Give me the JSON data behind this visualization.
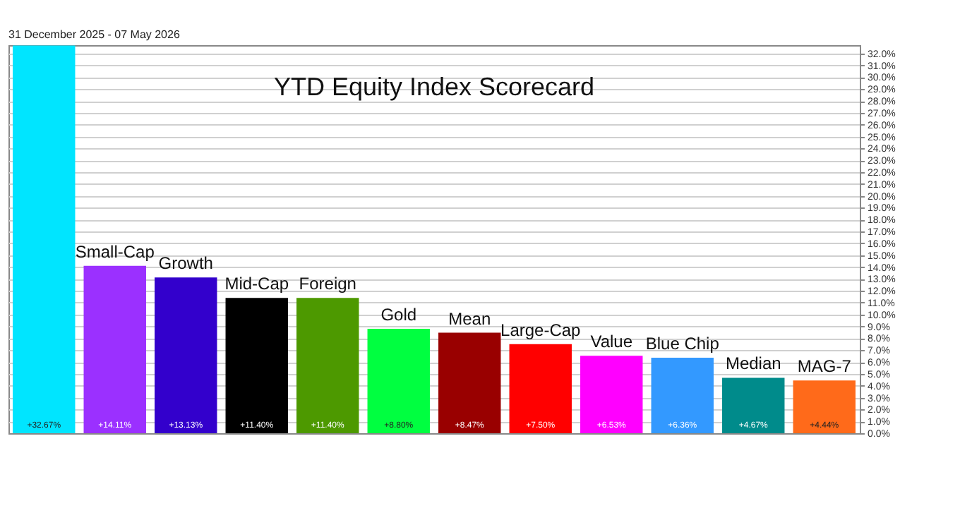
{
  "chart_data": {
    "type": "bar",
    "title": "YTD Equity Index Scorecard",
    "subtitle": "31 December 2025 - 07 May 2026",
    "categories": [
      null,
      "Small-Cap",
      "Growth",
      "Mid-Cap",
      "Foreign",
      "Gold",
      "Mean",
      "Large-Cap",
      "Value",
      "Blue Chip",
      "Median",
      "MAG-7"
    ],
    "values": [
      32.67,
      14.11,
      13.13,
      11.4,
      11.4,
      8.8,
      8.47,
      7.5,
      6.53,
      6.36,
      4.67,
      4.44
    ],
    "colors": [
      "#00e5ff",
      "#9b30ff",
      "#3300cc",
      "#000000",
      "#4d9900",
      "#00ff40",
      "#990000",
      "#ff0000",
      "#ff00ff",
      "#3399ff",
      "#008b8b",
      "#ff6a1a"
    ],
    "value_labels": [
      "+32.67%",
      "+14.11%",
      "+13.13%",
      "+11.40%",
      "+11.40%",
      "+8.80%",
      "+8.47%",
      "+7.50%",
      "+6.53%",
      "+6.36%",
      "+4.67%",
      "+4.44%"
    ],
    "ylim": [
      0,
      32.7
    ],
    "yticks": [
      {
        "value": 0,
        "label": "0.0%"
      },
      {
        "value": 1,
        "label": "1.0%"
      },
      {
        "value": 2,
        "label": "2.0%"
      },
      {
        "value": 3,
        "label": "3.0%"
      },
      {
        "value": 4,
        "label": "4.0%"
      },
      {
        "value": 5,
        "label": "5.0%"
      },
      {
        "value": 6,
        "label": "6.0%"
      },
      {
        "value": 7,
        "label": "7.0%"
      },
      {
        "value": 8,
        "label": "8.0%"
      },
      {
        "value": 9,
        "label": "9.0%"
      },
      {
        "value": 10,
        "label": "10.0%"
      },
      {
        "value": 11,
        "label": "11.0%"
      },
      {
        "value": 12,
        "label": "12.0%"
      },
      {
        "value": 13,
        "label": "13.0%"
      },
      {
        "value": 14,
        "label": "14.0%"
      },
      {
        "value": 15,
        "label": "15.0%"
      },
      {
        "value": 16,
        "label": "16.0%"
      },
      {
        "value": 17,
        "label": "17.0%"
      },
      {
        "value": 18,
        "label": "18.0%"
      },
      {
        "value": 19,
        "label": "19.0%"
      },
      {
        "value": 20,
        "label": "20.0%"
      },
      {
        "value": 21,
        "label": "21.0%"
      },
      {
        "value": 22,
        "label": "22.0%"
      },
      {
        "value": 23,
        "label": "23.0%"
      },
      {
        "value": 24,
        "label": "24.0%"
      },
      {
        "value": 25,
        "label": "25.0%"
      },
      {
        "value": 26,
        "label": "26.0%"
      },
      {
        "value": 27,
        "label": "27.0%"
      },
      {
        "value": 28,
        "label": "28.0%"
      },
      {
        "value": 29,
        "label": "29.0%"
      },
      {
        "value": 30,
        "label": "30.0%"
      },
      {
        "value": 31,
        "label": "31.0%"
      },
      {
        "value": 32,
        "label": "32.0%"
      }
    ],
    "grid": "y",
    "tick_labels": "y"
  }
}
